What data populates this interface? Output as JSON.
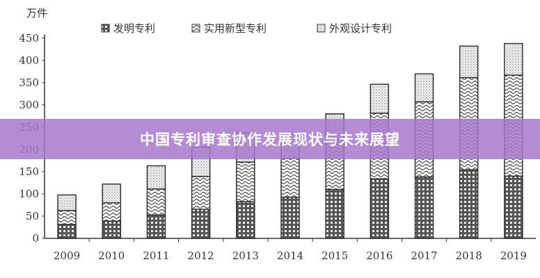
{
  "banner": {
    "title": "中国专利审查协作发展现状与未来展望"
  },
  "chart_data": {
    "type": "bar",
    "stacked": true,
    "ylabel": "万件",
    "ylim": [
      0,
      450
    ],
    "yticks": [
      0,
      50,
      100,
      150,
      200,
      250,
      300,
      350,
      400,
      450
    ],
    "categories": [
      "2009",
      "2010",
      "2011",
      "2012",
      "2013",
      "2014",
      "2015",
      "2016",
      "2017",
      "2018",
      "2019"
    ],
    "legend_position": "top",
    "series": [
      {
        "name": "发明专利",
        "pattern": "checker",
        "values": [
          31.5,
          39.1,
          52.6,
          65.3,
          82.5,
          92.8,
          110.2,
          133.9,
          138.2,
          154.2,
          140.1
        ]
      },
      {
        "name": "实用新型专利",
        "pattern": "wave",
        "values": [
          31.0,
          40.9,
          58.5,
          74.0,
          89.2,
          86.8,
          112.8,
          147.6,
          168.8,
          207.2,
          226.8
        ]
      },
      {
        "name": "外观设计专利",
        "pattern": "dots",
        "values": [
          35.2,
          42.1,
          52.1,
          65.8,
          65.9,
          56.5,
          56.9,
          65.0,
          62.9,
          70.9,
          71.2
        ]
      }
    ],
    "grid": false
  }
}
